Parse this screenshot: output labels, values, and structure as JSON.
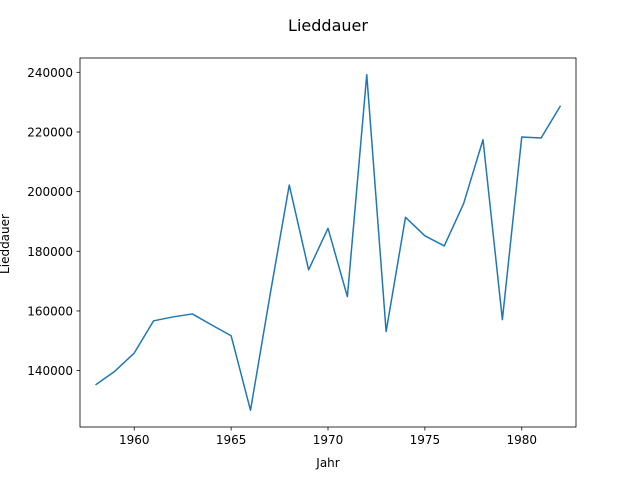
{
  "chart_data": {
    "type": "line",
    "title": "Lieddauer",
    "xlabel": "Jahr",
    "ylabel": "Lieddauer",
    "x": [
      1958,
      1959,
      1960,
      1961,
      1962,
      1963,
      1964,
      1965,
      1966,
      1967,
      1968,
      1969,
      1970,
      1971,
      1972,
      1973,
      1974,
      1975,
      1976,
      1977,
      1978,
      1979,
      1980,
      1981,
      1982
    ],
    "series": [
      {
        "values": [
          135200,
          139800,
          145900,
          156700,
          158000,
          159000,
          155300,
          151700,
          126700,
          165000,
          202200,
          173800,
          187700,
          164800,
          239200,
          153100,
          191400,
          185200,
          181800,
          196000,
          217400,
          157100,
          218300,
          218000,
          228800
        ],
        "color": "#1f77b4"
      }
    ],
    "xlim": [
      1957.2,
      1982.8
    ],
    "ylim": [
      121100,
      244800
    ],
    "xticks": [
      1960,
      1965,
      1970,
      1975,
      1980
    ],
    "yticks": [
      140000,
      160000,
      180000,
      200000,
      220000,
      240000
    ],
    "grid": false
  }
}
